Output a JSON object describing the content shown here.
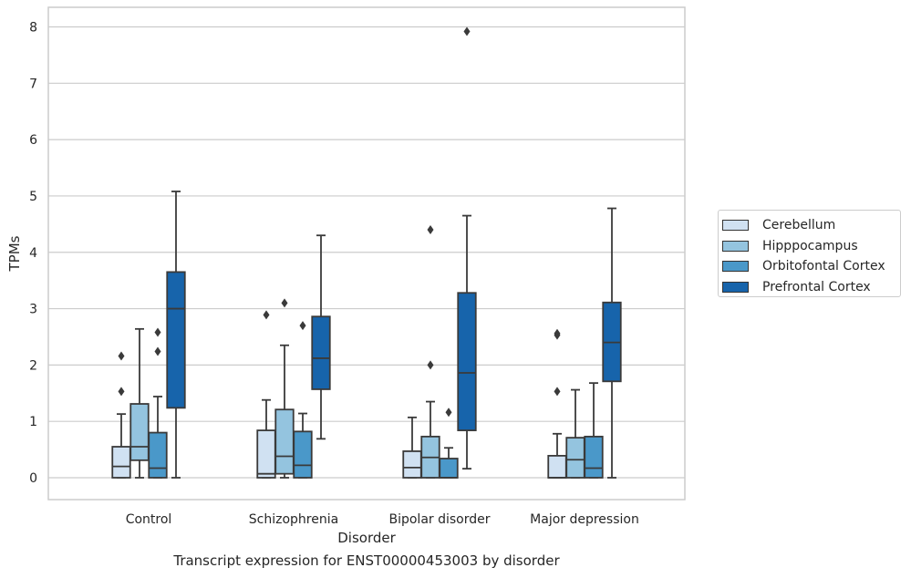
{
  "chart_data": {
    "type": "box",
    "title": "",
    "xlabel": "Disorder",
    "ylabel": "TPMs",
    "caption": "Transcript expression for ENST00000453003 by disorder",
    "categories": [
      "Control",
      "Schizophrenia",
      "Bipolar disorder",
      "Major depression"
    ],
    "ylim": [
      -0.4,
      8.35
    ],
    "yticks": [
      "0",
      "1",
      "2",
      "3",
      "4",
      "5",
      "6",
      "7",
      "8"
    ],
    "grid": "horizontal",
    "legend_position": "right",
    "series": [
      {
        "name": "Cerebellum",
        "color": "#d0e1f2",
        "boxes": [
          {
            "whisker_low": 0,
            "q1": 0,
            "median": 0.2,
            "q3": 0.55,
            "whisker_high": 1.13,
            "outliers": [
              1.53,
              2.16
            ]
          },
          {
            "whisker_low": 0,
            "q1": 0,
            "median": 0.07,
            "q3": 0.84,
            "whisker_high": 1.38,
            "outliers": [
              2.89
            ]
          },
          {
            "whisker_low": 0,
            "q1": 0,
            "median": 0.18,
            "q3": 0.47,
            "whisker_high": 1.07,
            "outliers": []
          },
          {
            "whisker_low": 0,
            "q1": 0,
            "median": 0,
            "q3": 0.39,
            "whisker_high": 0.78,
            "outliers": [
              1.53,
              2.53,
              2.56
            ]
          }
        ]
      },
      {
        "name": "Hipppocampus",
        "color": "#94c4df",
        "boxes": [
          {
            "whisker_low": 0,
            "q1": 0.31,
            "median": 0.55,
            "q3": 1.31,
            "whisker_high": 2.64,
            "outliers": []
          },
          {
            "whisker_low": 0,
            "q1": 0.07,
            "median": 0.38,
            "q3": 1.21,
            "whisker_high": 2.35,
            "outliers": [
              3.1
            ]
          },
          {
            "whisker_low": 0,
            "q1": 0,
            "median": 0.36,
            "q3": 0.73,
            "whisker_high": 1.35,
            "outliers": [
              2.0,
              4.4
            ]
          },
          {
            "whisker_low": 0,
            "q1": 0,
            "median": 0.32,
            "q3": 0.71,
            "whisker_high": 1.56,
            "outliers": []
          }
        ]
      },
      {
        "name": "Orbitofontal Cortex",
        "color": "#4a98c9",
        "boxes": [
          {
            "whisker_low": 0,
            "q1": 0,
            "median": 0.17,
            "q3": 0.8,
            "whisker_high": 1.44,
            "outliers": [
              2.24,
              2.58
            ]
          },
          {
            "whisker_low": 0,
            "q1": 0,
            "median": 0.22,
            "q3": 0.82,
            "whisker_high": 1.14,
            "outliers": [
              2.7
            ]
          },
          {
            "whisker_low": 0,
            "q1": 0,
            "median": 0,
            "q3": 0.34,
            "whisker_high": 0.53,
            "outliers": [
              1.16
            ]
          },
          {
            "whisker_low": 0,
            "q1": 0,
            "median": 0.17,
            "q3": 0.73,
            "whisker_high": 1.68,
            "outliers": []
          }
        ]
      },
      {
        "name": "Prefrontal Cortex",
        "color": "#1764ab",
        "boxes": [
          {
            "whisker_low": 0,
            "q1": 1.24,
            "median": 3.0,
            "q3": 3.65,
            "whisker_high": 5.08,
            "outliers": []
          },
          {
            "whisker_low": 0.69,
            "q1": 1.57,
            "median": 2.12,
            "q3": 2.86,
            "whisker_high": 4.3,
            "outliers": []
          },
          {
            "whisker_low": 0.16,
            "q1": 0.84,
            "median": 1.86,
            "q3": 3.28,
            "whisker_high": 4.65,
            "outliers": [
              7.92
            ]
          },
          {
            "whisker_low": 0,
            "q1": 1.71,
            "median": 2.4,
            "q3": 3.11,
            "whisker_high": 4.78,
            "outliers": []
          }
        ]
      }
    ]
  }
}
